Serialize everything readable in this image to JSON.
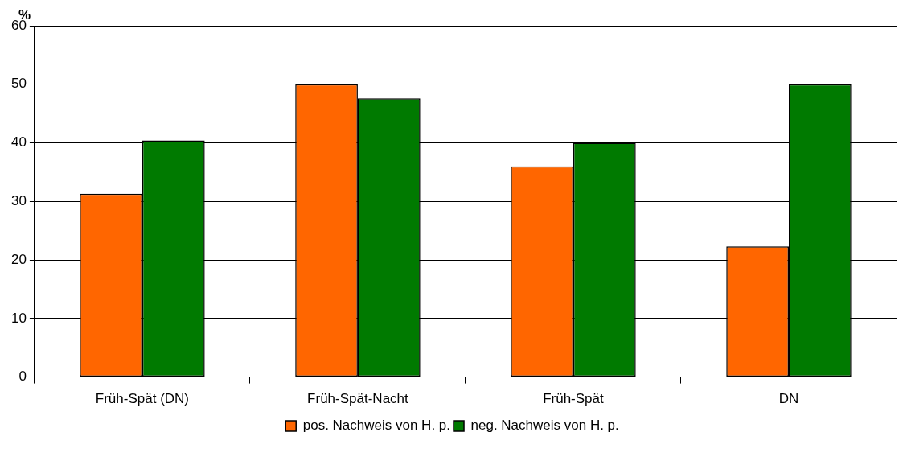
{
  "chart_data": {
    "type": "bar",
    "ylabel": "%",
    "categories": [
      "Früh-Spät (DN)",
      "Früh-Spät-Nacht",
      "Früh-Spät",
      "DN"
    ],
    "series": [
      {
        "name": "pos. Nachweis von H. p.",
        "color": "#ff6600",
        "values": [
          31.3,
          50,
          36.0,
          22.3
        ]
      },
      {
        "name": "neg. Nachweis von H. p.",
        "color": "#007a00",
        "values": [
          40.4,
          47.6,
          40.0,
          50
        ]
      }
    ],
    "ylim": [
      0,
      60
    ],
    "yticks": [
      0,
      10,
      20,
      30,
      40,
      50,
      60
    ],
    "grid": "y",
    "legend": "bottom"
  }
}
